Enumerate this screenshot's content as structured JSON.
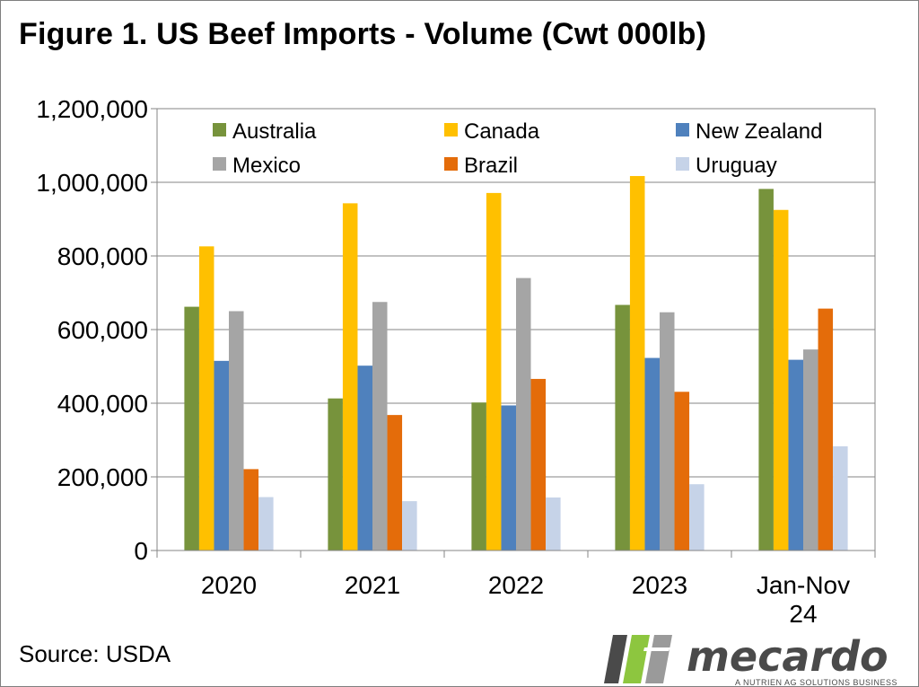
{
  "title": "Figure 1. US Beef Imports - Volume (Cwt 000lb)",
  "source": "Source: USDA",
  "brand": {
    "name": "mecardo",
    "tagline": "A NUTRIEN AG SOLUTIONS BUSINESS",
    "colors": {
      "dark": "#4a4a4a",
      "green": "#8dc63f",
      "gray": "#9a9a9a"
    }
  },
  "chart_data": {
    "type": "bar",
    "categories": [
      "2020",
      "2021",
      "2022",
      "2023",
      "Jan-Nov 24"
    ],
    "category_lines": [
      [
        "2020"
      ],
      [
        "2021"
      ],
      [
        "2022"
      ],
      [
        "2023"
      ],
      [
        "Jan-Nov",
        "24"
      ]
    ],
    "series": [
      {
        "name": "Australia",
        "color": "#77933c",
        "values": [
          662000,
          413000,
          402000,
          667000,
          982000
        ]
      },
      {
        "name": "Canada",
        "color": "#ffc000",
        "values": [
          826000,
          943000,
          971000,
          1017000,
          925000
        ]
      },
      {
        "name": "New Zealand",
        "color": "#4f81bd",
        "values": [
          515000,
          502000,
          394000,
          523000,
          518000
        ]
      },
      {
        "name": "Mexico",
        "color": "#a5a5a5",
        "values": [
          650000,
          675000,
          740000,
          647000,
          546000
        ]
      },
      {
        "name": "Brazil",
        "color": "#e46c0a",
        "values": [
          221000,
          368000,
          466000,
          431000,
          657000
        ]
      },
      {
        "name": "Uruguay",
        "color": "#c6d3e8",
        "values": [
          145000,
          134000,
          144000,
          180000,
          283000
        ]
      }
    ],
    "ylim": [
      0,
      1200000
    ],
    "yticks": [
      0,
      200000,
      400000,
      600000,
      800000,
      1000000,
      1200000
    ],
    "ytick_labels": [
      "0",
      "200,000",
      "400,000",
      "600,000",
      "800,000",
      "1,000,000",
      "1,200,000"
    ],
    "grid": true,
    "legend_position": "top, inside plot area, 3 columns"
  }
}
